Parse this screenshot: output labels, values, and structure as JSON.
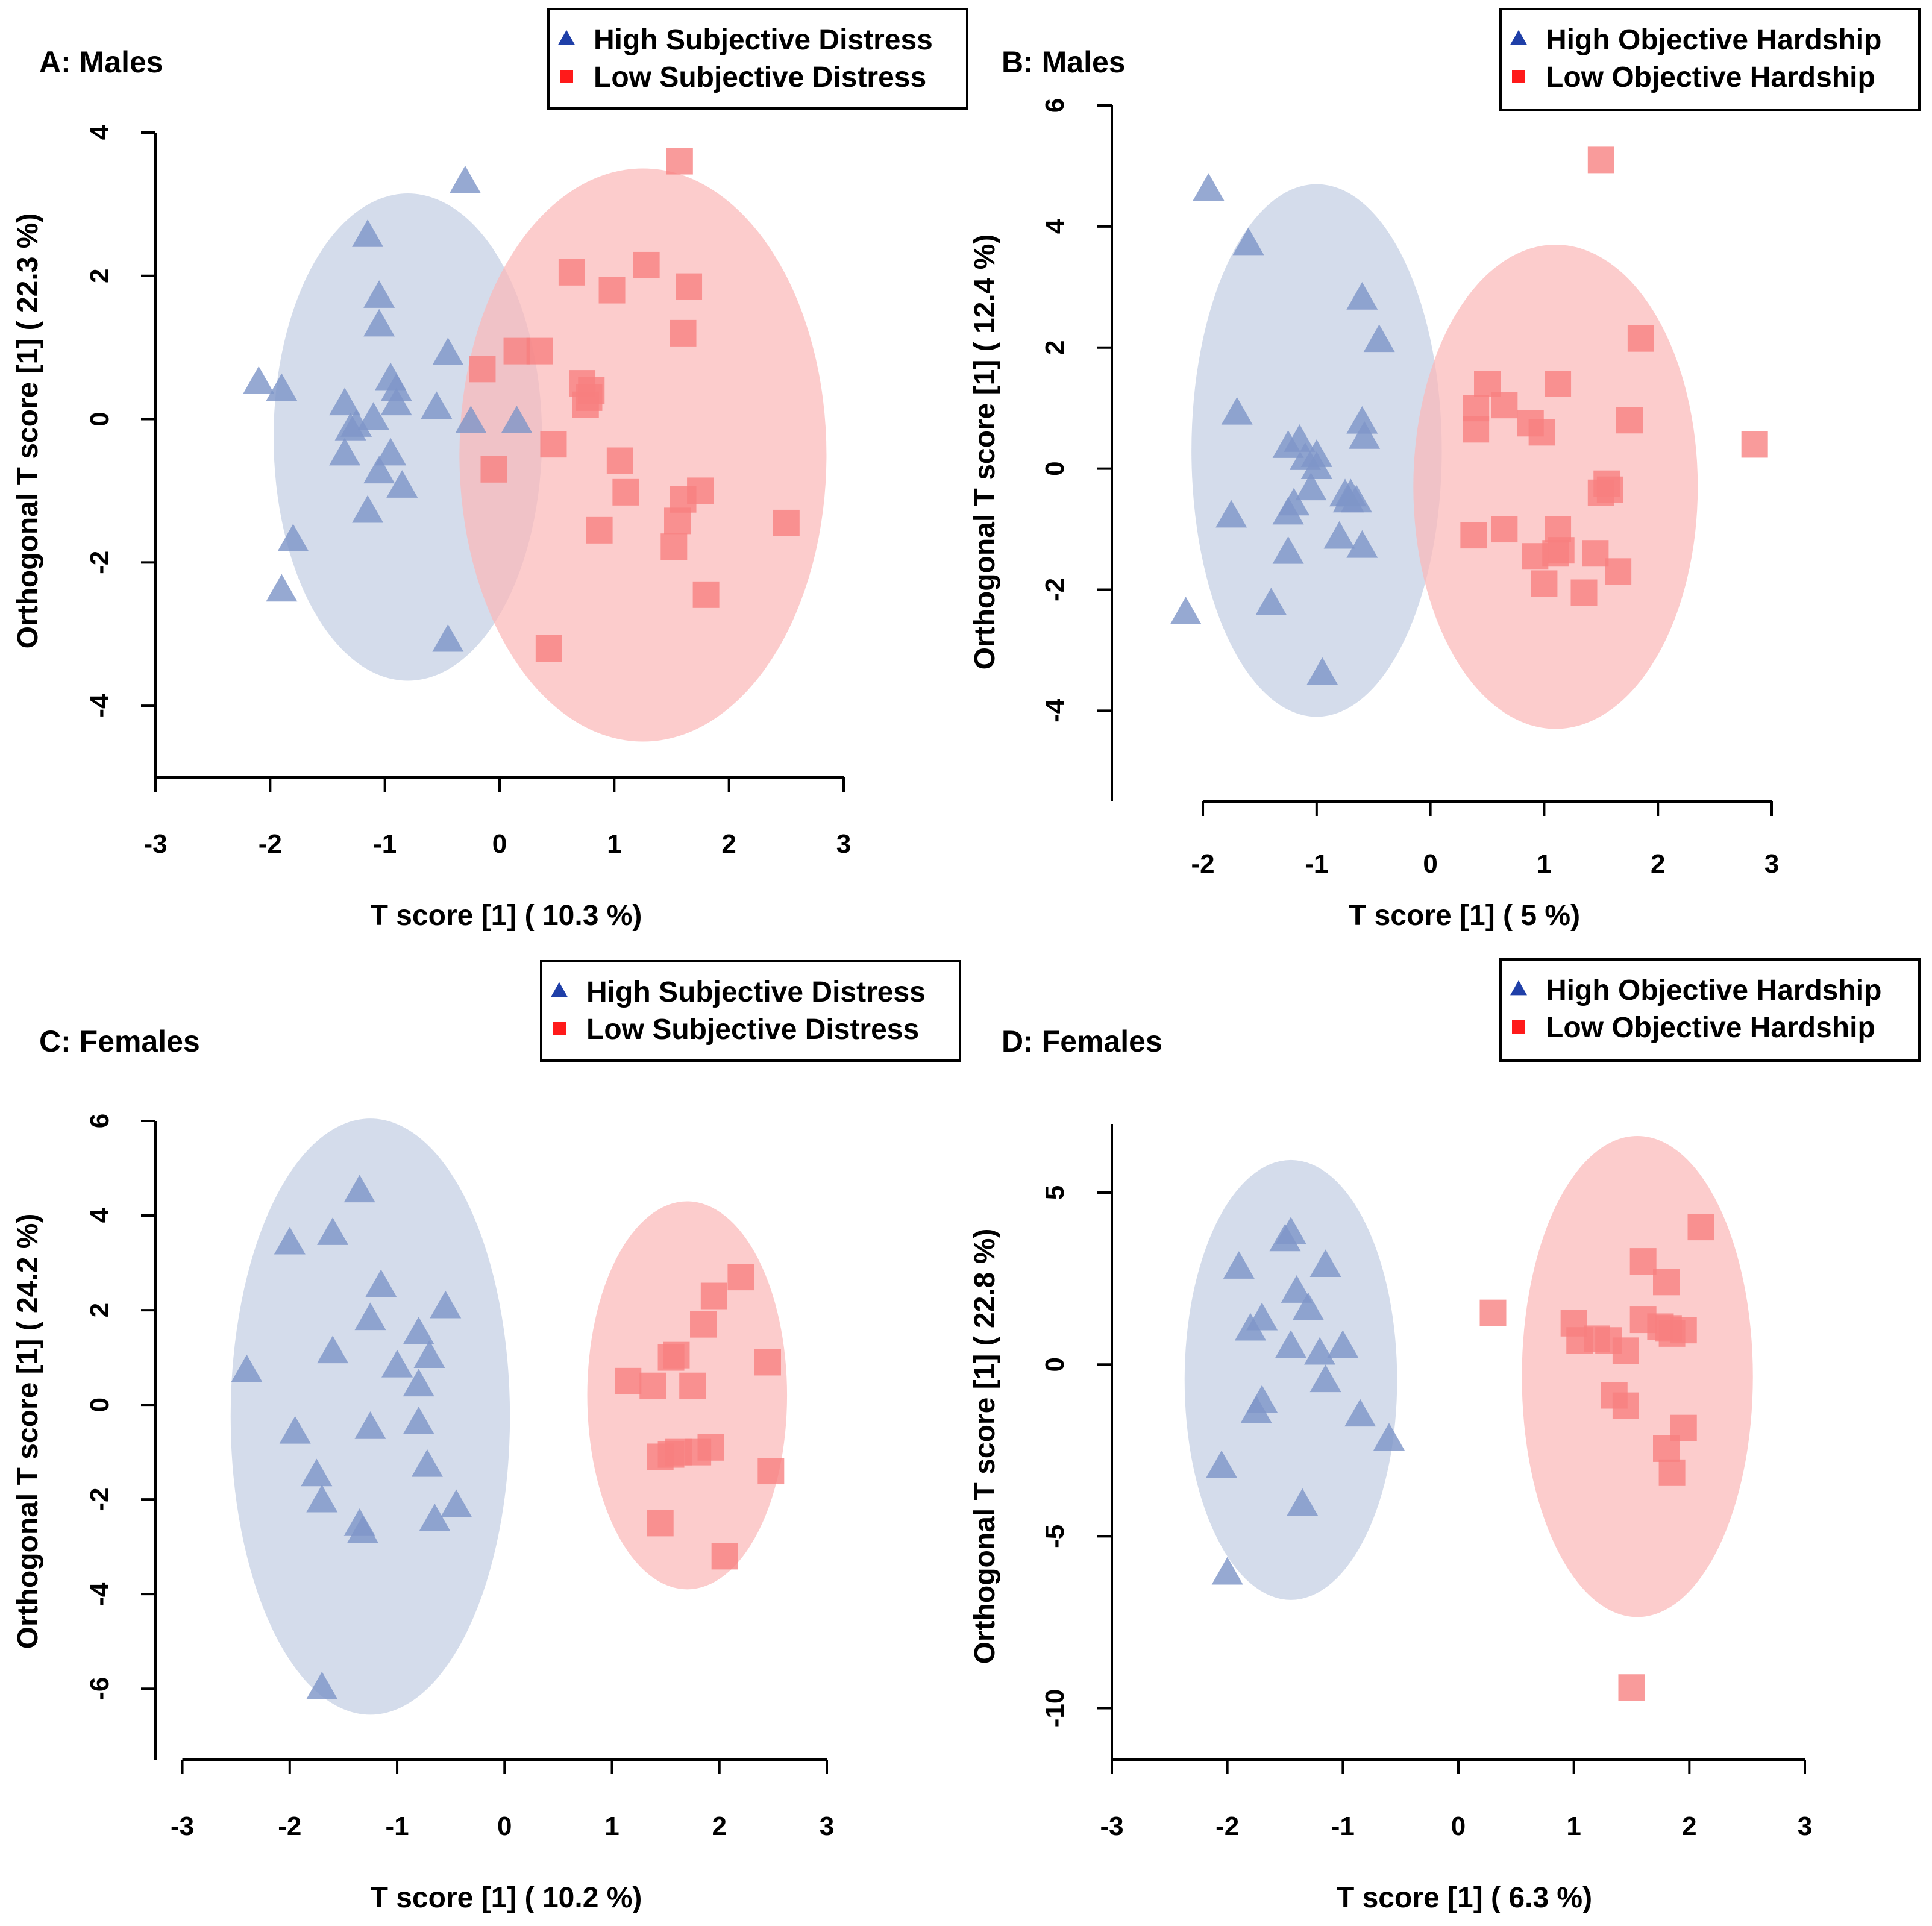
{
  "colors": {
    "high_marker": "#7f96c8",
    "high_legend": "#1f3fa8",
    "high_ellipse": "#c8d2e6",
    "low_marker": "#f77f7f",
    "low_legend": "#ff1a1a",
    "low_ellipse": "#fbb8b8"
  },
  "chart_data": [
    {
      "type": "scatter",
      "panel": "A",
      "title": "A: Males",
      "xlabel": "T score [1] ( 10.3 %)",
      "ylabel": "Orthogonal T score [1] ( 22.3 %)",
      "xlim": [
        -3,
        3
      ],
      "ylim": [
        -5,
        4
      ],
      "xticks": [
        "-3",
        "-2",
        "-1",
        "0",
        "1",
        "2",
        "3"
      ],
      "xtick_values": [
        -3,
        -2,
        -1,
        0,
        1,
        2,
        3
      ],
      "yticks": [
        "4",
        "2",
        "0",
        "-2",
        "-4"
      ],
      "ytick_values": [
        4,
        2,
        0,
        -2,
        -4
      ],
      "legend": {
        "position": "top-right",
        "entries": [
          "High Subjective Distress",
          "Low Subjective Distress"
        ]
      },
      "series": [
        {
          "name": "High Subjective Distress",
          "marker": "triangle",
          "ellipse": {
            "cx": -0.8,
            "cy": -0.25,
            "rx": 1.17,
            "ry": 3.4
          },
          "points": [
            [
              -2.1,
              0.5
            ],
            [
              -1.9,
              0.4
            ],
            [
              -1.8,
              -1.7
            ],
            [
              -1.9,
              -2.4
            ],
            [
              -1.15,
              2.55
            ],
            [
              -1.05,
              1.7
            ],
            [
              -1.05,
              1.3
            ],
            [
              -1.35,
              0.2
            ],
            [
              -1.3,
              -0.15
            ],
            [
              -1.25,
              -0.1
            ],
            [
              -1.35,
              -0.5
            ],
            [
              -1.1,
              0.0
            ],
            [
              -1.05,
              -0.75
            ],
            [
              -0.95,
              0.55
            ],
            [
              -0.9,
              0.4
            ],
            [
              -0.9,
              0.2
            ],
            [
              -0.95,
              -0.5
            ],
            [
              -0.85,
              -0.95
            ],
            [
              -1.15,
              -1.3
            ],
            [
              -0.55,
              0.15
            ],
            [
              -0.45,
              0.9
            ],
            [
              -0.25,
              -0.05
            ],
            [
              0.15,
              -0.05
            ],
            [
              -0.3,
              3.3
            ],
            [
              -0.45,
              -3.1
            ]
          ]
        },
        {
          "name": "Low Subjective Distress",
          "marker": "square",
          "ellipse": {
            "cx": 1.25,
            "cy": -0.5,
            "rx": 1.6,
            "ry": 4.0
          },
          "points": [
            [
              1.57,
              3.6
            ],
            [
              0.63,
              2.05
            ],
            [
              0.98,
              1.8
            ],
            [
              1.28,
              2.15
            ],
            [
              1.65,
              1.85
            ],
            [
              1.6,
              1.2
            ],
            [
              -0.15,
              0.7
            ],
            [
              0.15,
              0.95
            ],
            [
              0.35,
              0.95
            ],
            [
              0.72,
              0.5
            ],
            [
              0.78,
              0.3
            ],
            [
              0.75,
              0.2
            ],
            [
              0.8,
              0.4
            ],
            [
              0.47,
              -0.35
            ],
            [
              -0.05,
              -0.7
            ],
            [
              1.05,
              -0.58
            ],
            [
              1.1,
              -1.02
            ],
            [
              0.87,
              -1.55
            ],
            [
              1.6,
              -1.12
            ],
            [
              1.75,
              -1.0
            ],
            [
              1.55,
              -1.42
            ],
            [
              1.52,
              -1.78
            ],
            [
              1.8,
              -2.45
            ],
            [
              2.5,
              -1.45
            ],
            [
              0.43,
              -3.2
            ]
          ]
        }
      ]
    },
    {
      "type": "scatter",
      "panel": "B",
      "title": "B: Males",
      "xlabel": "T score [1] ( 5 %)",
      "ylabel": "Orthogonal T score [1] ( 12.4 %)",
      "xlim": [
        -2.8,
        3
      ],
      "ylim": [
        -5.5,
        6
      ],
      "xticks": [
        "-2",
        "-1",
        "0",
        "1",
        "2",
        "3"
      ],
      "xtick_values": [
        -2,
        -1,
        0,
        1,
        2,
        3
      ],
      "yticks": [
        "6",
        "4",
        "2",
        "0",
        "-2",
        "-4"
      ],
      "ytick_values": [
        6,
        4,
        2,
        0,
        -2,
        -4
      ],
      "legend": {
        "position": "top-right",
        "entries": [
          "High Objective Hardship",
          "Low Objective Hardship"
        ]
      },
      "series": [
        {
          "name": "High Objective Hardship",
          "marker": "triangle",
          "ellipse": {
            "cx": -1.0,
            "cy": 0.3,
            "rx": 1.1,
            "ry": 4.4
          },
          "points": [
            [
              -1.95,
              4.6
            ],
            [
              -1.6,
              3.7
            ],
            [
              -0.6,
              2.8
            ],
            [
              -0.45,
              2.1
            ],
            [
              -1.7,
              0.9
            ],
            [
              -1.75,
              -0.8
            ],
            [
              -2.15,
              -2.4
            ],
            [
              -1.4,
              -2.25
            ],
            [
              -0.95,
              -3.4
            ],
            [
              -1.25,
              0.35
            ],
            [
              -1.15,
              0.45
            ],
            [
              -1.1,
              0.15
            ],
            [
              -1.0,
              0.2
            ],
            [
              -1.0,
              0.0
            ],
            [
              -1.2,
              -0.6
            ],
            [
              -1.25,
              -0.75
            ],
            [
              -1.05,
              -0.35
            ],
            [
              -0.75,
              -0.45
            ],
            [
              -0.72,
              -0.55
            ],
            [
              -0.7,
              -0.45
            ],
            [
              -0.65,
              -0.55
            ],
            [
              -0.8,
              -1.15
            ],
            [
              -1.25,
              -1.4
            ],
            [
              -0.6,
              -1.3
            ],
            [
              -0.6,
              0.75
            ],
            [
              -0.58,
              0.5
            ]
          ]
        },
        {
          "name": "Low Objective Hardship",
          "marker": "square",
          "ellipse": {
            "cx": 1.1,
            "cy": -0.3,
            "rx": 1.25,
            "ry": 4.0
          },
          "points": [
            [
              1.5,
              5.1
            ],
            [
              1.85,
              2.15
            ],
            [
              0.5,
              1.4
            ],
            [
              1.12,
              1.4
            ],
            [
              0.4,
              1.0
            ],
            [
              0.65,
              1.05
            ],
            [
              0.4,
              0.65
            ],
            [
              0.88,
              0.75
            ],
            [
              0.98,
              0.6
            ],
            [
              1.75,
              0.8
            ],
            [
              2.85,
              0.4
            ],
            [
              1.55,
              -0.25
            ],
            [
              1.5,
              -0.4
            ],
            [
              1.58,
              -0.35
            ],
            [
              0.38,
              -1.1
            ],
            [
              0.65,
              -1.0
            ],
            [
              0.92,
              -1.45
            ],
            [
              1.12,
              -1.0
            ],
            [
              1.1,
              -1.4
            ],
            [
              1.15,
              -1.35
            ],
            [
              1.45,
              -1.4
            ],
            [
              1.65,
              -1.7
            ],
            [
              1.0,
              -1.9
            ],
            [
              1.35,
              -2.05
            ]
          ]
        }
      ]
    },
    {
      "type": "scatter",
      "panel": "C",
      "title": "C: Females",
      "xlabel": "T score [1] ( 10.2 %)",
      "ylabel": "Orthogonal T score [1] ( 24.2 %)",
      "xlim": [
        -3.25,
        3
      ],
      "ylim": [
        -7.5,
        6
      ],
      "xticks": [
        "-3",
        "-2",
        "-1",
        "0",
        "1",
        "2",
        "3"
      ],
      "xtick_values": [
        -3,
        -2,
        -1,
        0,
        1,
        2,
        3
      ],
      "yticks": [
        "6",
        "4",
        "2",
        "0",
        "-2",
        "-4",
        "-6"
      ],
      "ytick_values": [
        6,
        4,
        2,
        0,
        -2,
        -4,
        -6
      ],
      "legend": {
        "position": "top-right",
        "entries": [
          "High Subjective Distress",
          "Low Subjective Distress"
        ]
      },
      "series": [
        {
          "name": "High Subjective Distress",
          "marker": "triangle",
          "ellipse": {
            "cx": -1.25,
            "cy": -0.25,
            "rx": 1.3,
            "ry": 6.3
          },
          "points": [
            [
              -1.35,
              4.5
            ],
            [
              -2.0,
              3.4
            ],
            [
              -1.6,
              3.6
            ],
            [
              -1.15,
              2.5
            ],
            [
              -1.25,
              1.8
            ],
            [
              -0.55,
              2.05
            ],
            [
              -0.8,
              1.5
            ],
            [
              -1.6,
              1.1
            ],
            [
              -1.0,
              0.8
            ],
            [
              -0.7,
              1.0
            ],
            [
              -0.8,
              0.4
            ],
            [
              -2.4,
              0.7
            ],
            [
              -1.95,
              -0.6
            ],
            [
              -1.25,
              -0.5
            ],
            [
              -0.8,
              -0.4
            ],
            [
              -1.75,
              -1.5
            ],
            [
              -0.72,
              -1.3
            ],
            [
              -1.7,
              -2.05
            ],
            [
              -1.35,
              -2.55
            ],
            [
              -1.32,
              -2.7
            ],
            [
              -0.65,
              -2.45
            ],
            [
              -0.45,
              -2.15
            ],
            [
              -1.7,
              -6.0
            ]
          ]
        },
        {
          "name": "Low Subjective Distress",
          "marker": "square",
          "ellipse": {
            "cx": 1.7,
            "cy": 0.2,
            "rx": 0.93,
            "ry": 4.1
          },
          "points": [
            [
              2.2,
              2.7
            ],
            [
              1.95,
              2.3
            ],
            [
              1.85,
              1.7
            ],
            [
              1.6,
              1.05
            ],
            [
              1.55,
              1.0
            ],
            [
              1.15,
              0.5
            ],
            [
              1.38,
              0.4
            ],
            [
              1.75,
              0.4
            ],
            [
              2.45,
              0.9
            ],
            [
              1.45,
              -1.1
            ],
            [
              1.55,
              -1.05
            ],
            [
              1.62,
              -1.0
            ],
            [
              1.8,
              -1.0
            ],
            [
              1.92,
              -0.9
            ],
            [
              2.48,
              -1.4
            ],
            [
              1.45,
              -2.5
            ],
            [
              2.05,
              -3.2
            ]
          ]
        }
      ]
    },
    {
      "type": "scatter",
      "panel": "D",
      "title": "D: Females",
      "xlabel": "T score [1] ( 6.3 %)",
      "ylabel": "Orthogonal T score [1] ( 22.8 %)",
      "xlim": [
        -3,
        3
      ],
      "ylim": [
        -11.5,
        7
      ],
      "xticks": [
        "-3",
        "-2",
        "-1",
        "0",
        "1",
        "2",
        "3"
      ],
      "xtick_values": [
        -3,
        -2,
        -1,
        0,
        1,
        2,
        3
      ],
      "yticks": [
        "5",
        "0",
        "-5",
        "-10"
      ],
      "ytick_values": [
        5,
        0,
        -5,
        -10
      ],
      "legend": {
        "position": "top-right",
        "entries": [
          "High Objective Hardship",
          "Low Objective Hardship"
        ]
      },
      "series": [
        {
          "name": "High Objective Hardship",
          "marker": "triangle",
          "ellipse": {
            "cx": -1.45,
            "cy": -0.45,
            "rx": 0.92,
            "ry": 6.4
          },
          "points": [
            [
              -1.45,
              3.8
            ],
            [
              -1.5,
              3.6
            ],
            [
              -1.9,
              2.8
            ],
            [
              -1.15,
              2.85
            ],
            [
              -1.4,
              2.1
            ],
            [
              -1.3,
              1.6
            ],
            [
              -1.7,
              1.3
            ],
            [
              -1.8,
              1.0
            ],
            [
              -1.45,
              0.5
            ],
            [
              -1.2,
              0.3
            ],
            [
              -1.0,
              0.5
            ],
            [
              -1.15,
              -0.5
            ],
            [
              -1.7,
              -1.1
            ],
            [
              -1.75,
              -1.4
            ],
            [
              -0.85,
              -1.5
            ],
            [
              -0.6,
              -2.2
            ],
            [
              -2.05,
              -3.0
            ],
            [
              -1.35,
              -4.1
            ],
            [
              -2.0,
              -6.1
            ]
          ]
        },
        {
          "name": "Low Objective Hardship",
          "marker": "square",
          "ellipse": {
            "cx": 1.55,
            "cy": -0.35,
            "rx": 1.0,
            "ry": 7.0
          },
          "points": [
            [
              2.1,
              4.0
            ],
            [
              1.6,
              3.0
            ],
            [
              1.8,
              2.4
            ],
            [
              0.3,
              1.5
            ],
            [
              1.0,
              1.2
            ],
            [
              1.05,
              0.7
            ],
            [
              1.2,
              0.75
            ],
            [
              1.3,
              0.7
            ],
            [
              1.45,
              0.4
            ],
            [
              1.6,
              1.3
            ],
            [
              1.75,
              1.1
            ],
            [
              1.85,
              0.9
            ],
            [
              1.82,
              1.05
            ],
            [
              1.95,
              1.0
            ],
            [
              1.35,
              -0.9
            ],
            [
              1.45,
              -1.2
            ],
            [
              1.95,
              -1.85
            ],
            [
              1.8,
              -2.45
            ],
            [
              1.85,
              -3.15
            ],
            [
              1.5,
              -9.4
            ]
          ]
        }
      ]
    }
  ]
}
